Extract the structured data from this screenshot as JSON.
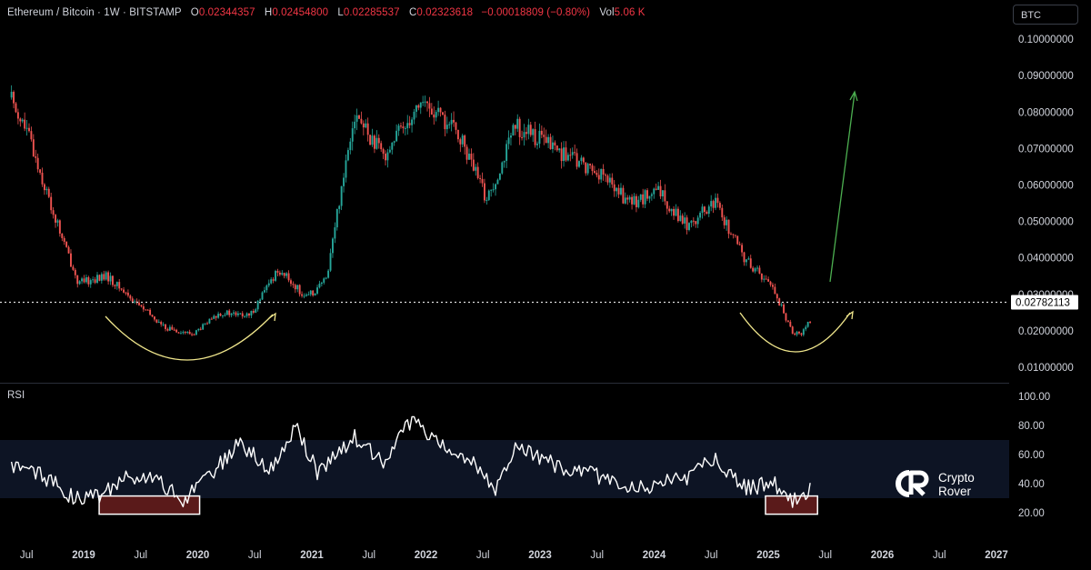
{
  "header": {
    "symbol": "Ethereum / Bitcoin · 1W · BITSTAMP",
    "open_label": "O",
    "open_value": "0.02344357",
    "high_label": "H",
    "high_value": "0.02454800",
    "low_label": "L",
    "low_value": "0.02285537",
    "close_label": "C",
    "close_value": "0.02323618",
    "change": "−0.00018809 (−0.80%)",
    "vol_label": "Vol",
    "vol_value": "5.06 K"
  },
  "currency_button": "BTC",
  "rsi_label": "RSI",
  "logo": {
    "line1": "Crypto",
    "line2": "Rover"
  },
  "colors": {
    "up": "#26a69a",
    "down": "#ef5350",
    "accent_green": "#4caf50",
    "curve": "#f0e68c",
    "rsi_line": "#ffffff",
    "rsi_band": "#0d1424",
    "rsi_box": "#5a1a1a"
  },
  "chart_data": [
    {
      "type": "candlestick",
      "title": "Ethereum / Bitcoin · 1W · BITSTAMP",
      "ylim": [
        0.005,
        0.105
      ],
      "y_ticks": [
        "0.10000000",
        "0.09000000",
        "0.08000000",
        "0.07000000",
        "0.06000000",
        "0.05000000",
        "0.04000000",
        "0.03000000",
        "0.02000000",
        "0.01000000"
      ],
      "x_ticks": [
        "Jul",
        "2019",
        "Jul",
        "2020",
        "Jul",
        "2021",
        "Jul",
        "2022",
        "Jul",
        "2023",
        "Jul",
        "2024",
        "Jul",
        "2025",
        "Jul",
        "2026",
        "Jul",
        "2027"
      ],
      "price_line": {
        "value": 0.02782113,
        "label": "0.02782113"
      },
      "series": [
        {
          "x": [
            "2018-05",
            "2018-07",
            "2018-09",
            "2018-12",
            "2019-03",
            "2019-06",
            "2019-09",
            "2019-12",
            "2020-03",
            "2020-06",
            "2020-09",
            "2020-12",
            "2021-02",
            "2021-05",
            "2021-08",
            "2021-12",
            "2022-04",
            "2022-07",
            "2022-10",
            "2023-01",
            "2023-04",
            "2023-07",
            "2023-10",
            "2024-01",
            "2024-04",
            "2024-07",
            "2024-10",
            "2025-01",
            "2025-03",
            "2025-04",
            "2025-05"
          ],
          "values": [
            0.084,
            0.072,
            0.055,
            0.033,
            0.035,
            0.028,
            0.021,
            0.019,
            0.025,
            0.024,
            0.037,
            0.029,
            0.034,
            0.08,
            0.068,
            0.083,
            0.074,
            0.056,
            0.076,
            0.072,
            0.067,
            0.063,
            0.055,
            0.058,
            0.049,
            0.055,
            0.04,
            0.032,
            0.02,
            0.019,
            0.0232
          ]
        }
      ],
      "annotations": [
        "left rounded bottom arc",
        "right rounded bottom arc",
        "green upward arrow"
      ]
    },
    {
      "type": "line",
      "title": "RSI",
      "ylim": [
        10,
        100
      ],
      "y_ticks": [
        "100.00",
        "80.00",
        "60.00",
        "40.00",
        "20.00"
      ],
      "band": [
        30,
        70
      ],
      "series": [
        {
          "x": [
            "2018-05",
            "2018-08",
            "2018-11",
            "2019-02",
            "2019-05",
            "2019-08",
            "2019-11",
            "2020-02",
            "2020-05",
            "2020-08",
            "2020-11",
            "2021-01",
            "2021-05",
            "2021-08",
            "2021-11",
            "2022-02",
            "2022-05",
            "2022-08",
            "2022-10",
            "2023-01",
            "2023-04",
            "2023-07",
            "2023-10",
            "2024-01",
            "2024-04",
            "2024-07",
            "2024-10",
            "2025-01",
            "2025-03",
            "2025-04",
            "2025-05"
          ],
          "values": [
            52,
            47,
            32,
            30,
            46,
            44,
            30,
            46,
            70,
            48,
            80,
            48,
            72,
            55,
            84,
            65,
            58,
            35,
            68,
            55,
            50,
            45,
            36,
            40,
            45,
            58,
            37,
            40,
            30,
            26,
            40
          ]
        }
      ],
      "highlight_boxes": [
        [
          "2019-03",
          "2019-12"
        ],
        [
          "2025-01",
          "2025-05"
        ]
      ]
    }
  ]
}
